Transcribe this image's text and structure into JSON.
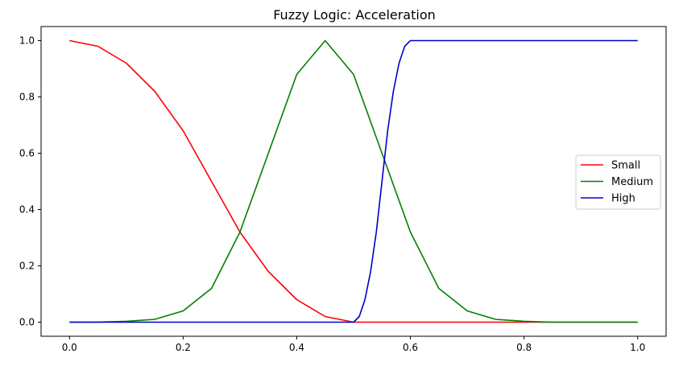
{
  "chart_data": {
    "type": "line",
    "title": "Fuzzy Logic: Acceleration",
    "xlabel": "",
    "ylabel": "",
    "xlim": [
      -0.05,
      1.05
    ],
    "ylim": [
      -0.05,
      1.05
    ],
    "xticks": [
      0.0,
      0.2,
      0.4,
      0.6,
      0.8,
      1.0
    ],
    "xtick_labels": [
      "0.0",
      "0.2",
      "0.4",
      "0.6",
      "0.8",
      "1.0"
    ],
    "yticks": [
      0.0,
      0.2,
      0.4,
      0.6,
      0.8,
      1.0
    ],
    "ytick_labels": [
      "0.0",
      "0.2",
      "0.4",
      "0.6",
      "0.8",
      "1.0"
    ],
    "grid": false,
    "legend_position": "center-right",
    "series": [
      {
        "name": "Small",
        "color": "#ff0000",
        "x": [
          0.0,
          0.05,
          0.1,
          0.15,
          0.2,
          0.25,
          0.3,
          0.35,
          0.4,
          0.45,
          0.5,
          0.55,
          0.6,
          0.7,
          0.8,
          0.9,
          1.0
        ],
        "y": [
          1.0,
          0.98,
          0.92,
          0.82,
          0.68,
          0.5,
          0.32,
          0.18,
          0.08,
          0.02,
          0.0,
          0.0,
          0.0,
          0.0,
          0.0,
          0.0,
          0.0
        ]
      },
      {
        "name": "Medium",
        "color": "#008000",
        "x": [
          0.0,
          0.05,
          0.1,
          0.15,
          0.2,
          0.25,
          0.3,
          0.35,
          0.4,
          0.45,
          0.5,
          0.55,
          0.6,
          0.65,
          0.7,
          0.75,
          0.8,
          0.85,
          0.9,
          1.0
        ],
        "y": [
          0.0,
          0.0,
          0.003,
          0.01,
          0.04,
          0.12,
          0.32,
          0.6,
          0.88,
          1.0,
          0.88,
          0.6,
          0.32,
          0.12,
          0.04,
          0.01,
          0.003,
          0.0,
          0.0,
          0.0
        ]
      },
      {
        "name": "High",
        "color": "#0000cc",
        "x": [
          0.0,
          0.1,
          0.2,
          0.3,
          0.4,
          0.5,
          0.51,
          0.52,
          0.53,
          0.54,
          0.55,
          0.56,
          0.57,
          0.58,
          0.59,
          0.6,
          0.7,
          0.8,
          0.9,
          1.0
        ],
        "y": [
          0.0,
          0.0,
          0.0,
          0.0,
          0.0,
          0.0,
          0.02,
          0.08,
          0.18,
          0.32,
          0.5,
          0.68,
          0.82,
          0.92,
          0.98,
          1.0,
          1.0,
          1.0,
          1.0,
          1.0
        ]
      }
    ]
  }
}
